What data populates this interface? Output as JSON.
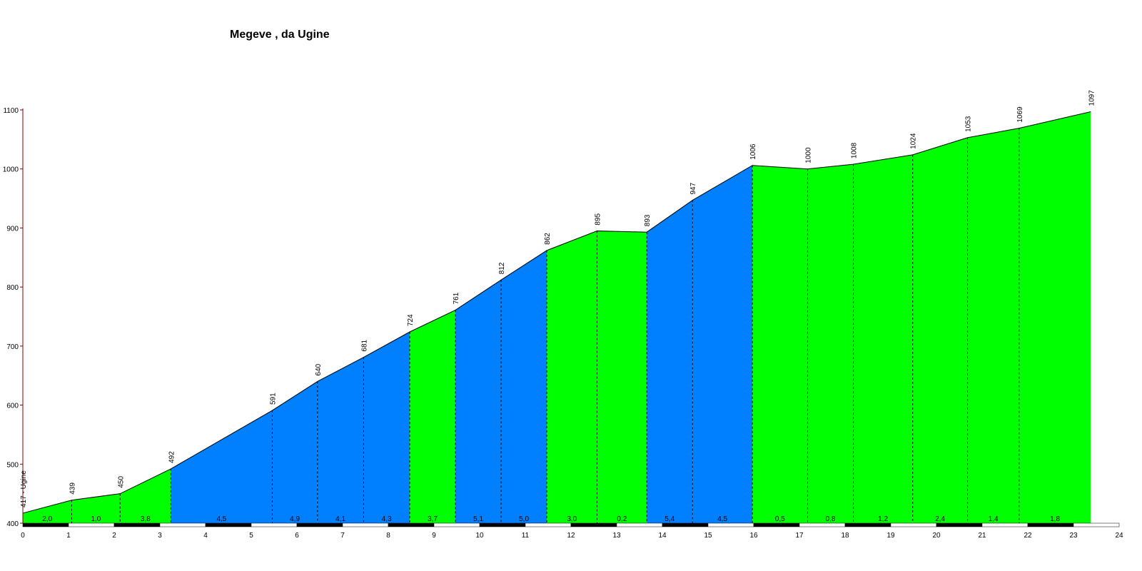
{
  "chart_data": {
    "type": "area",
    "title": "Megeve , da Ugine",
    "xlabel": "",
    "ylabel": "",
    "xlim": [
      0,
      24
    ],
    "ylim": [
      400,
      1100
    ],
    "x_ticks": [
      0,
      1,
      2,
      3,
      4,
      5,
      6,
      7,
      8,
      9,
      10,
      11,
      12,
      13,
      14,
      15,
      16,
      17,
      18,
      19,
      20,
      21,
      22,
      23,
      24
    ],
    "y_ticks": [
      400,
      500,
      600,
      700,
      800,
      900,
      1000,
      1100
    ],
    "points": [
      {
        "x": 0.0,
        "y": 417,
        "label": "417 - Ugine"
      },
      {
        "x": 1.07,
        "y": 439,
        "label": "439"
      },
      {
        "x": 2.13,
        "y": 450,
        "label": "450"
      },
      {
        "x": 3.24,
        "y": 492,
        "label": "492"
      },
      {
        "x": 5.46,
        "y": 591,
        "label": "591"
      },
      {
        "x": 6.45,
        "y": 640,
        "label": "640"
      },
      {
        "x": 7.46,
        "y": 681,
        "label": "681"
      },
      {
        "x": 8.47,
        "y": 724,
        "label": "724"
      },
      {
        "x": 9.47,
        "y": 761,
        "label": "761"
      },
      {
        "x": 10.47,
        "y": 812,
        "label": "812"
      },
      {
        "x": 11.47,
        "y": 862,
        "label": "862"
      },
      {
        "x": 12.57,
        "y": 895,
        "label": "895"
      },
      {
        "x": 13.66,
        "y": 893,
        "label": "893"
      },
      {
        "x": 14.66,
        "y": 947,
        "label": "947"
      },
      {
        "x": 15.97,
        "y": 1006,
        "label": "1006"
      },
      {
        "x": 17.18,
        "y": 1000,
        "label": "1000"
      },
      {
        "x": 18.18,
        "y": 1008,
        "label": "1008"
      },
      {
        "x": 19.48,
        "y": 1024,
        "label": "1024"
      },
      {
        "x": 20.68,
        "y": 1053,
        "label": "1053"
      },
      {
        "x": 21.81,
        "y": 1069,
        "label": "1069"
      },
      {
        "x": 23.38,
        "y": 1097,
        "label": "1097"
      }
    ],
    "segments": [
      {
        "gradient": "2,0",
        "color": "#00ff00"
      },
      {
        "gradient": "1,0",
        "color": "#00ff00"
      },
      {
        "gradient": "3,8",
        "color": "#00ff00"
      },
      {
        "gradient": "4,5",
        "color": "#0080ff"
      },
      {
        "gradient": "4,9",
        "color": "#0080ff"
      },
      {
        "gradient": "4,1",
        "color": "#0080ff"
      },
      {
        "gradient": "4,3",
        "color": "#0080ff"
      },
      {
        "gradient": "3,7",
        "color": "#00ff00"
      },
      {
        "gradient": "5,1",
        "color": "#0080ff"
      },
      {
        "gradient": "5,0",
        "color": "#0080ff"
      },
      {
        "gradient": "3,0",
        "color": "#00ff00"
      },
      {
        "gradient": "0,2",
        "color": "#00ff00"
      },
      {
        "gradient": "5,4",
        "color": "#0080ff"
      },
      {
        "gradient": "4,5",
        "color": "#0080ff"
      },
      {
        "gradient": "0,5",
        "color": "#00ff00"
      },
      {
        "gradient": "0,8",
        "color": "#00ff00"
      },
      {
        "gradient": "1,2",
        "color": "#00ff00"
      },
      {
        "gradient": "2,4",
        "color": "#00ff00"
      },
      {
        "gradient": "1,4",
        "color": "#00ff00"
      },
      {
        "gradient": "1,8",
        "color": "#00ff00"
      }
    ],
    "colors": {
      "easy": "#00ff00",
      "steep": "#0080ff",
      "axis_y": "#800000",
      "outline": "#000000"
    },
    "grid": false,
    "legend": "none"
  }
}
